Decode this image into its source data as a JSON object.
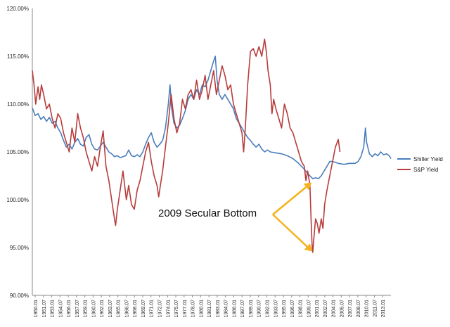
{
  "chart_data": {
    "type": "line",
    "title": "",
    "xlabel": "",
    "ylabel": "",
    "ylim": [
      90,
      120
    ],
    "yticks": [
      "90.00%",
      "95.00%",
      "100.00%",
      "105.00%",
      "110.00%",
      "115.00%",
      "120.00%"
    ],
    "grid": "none",
    "legend_position": "right",
    "x_tick_labels": [
      "1950.01",
      "1951.07",
      "1953.01",
      "1954.07",
      "1956.01",
      "1957.07",
      "1959.01",
      "1960.07",
      "1962.01",
      "1963.07",
      "1965.01",
      "1966.07",
      "1968.01",
      "1969.07",
      "1971.01",
      "1972.07",
      "1974.01",
      "1975.07",
      "1977.01",
      "1978.07",
      "1980.01",
      "1981.07",
      "1983.01",
      "1984.07",
      "1986.01",
      "1987.07",
      "1989.01",
      "1990.07",
      "1992.01",
      "1993.07",
      "1995.01",
      "1996.07",
      "1998.01",
      "1999.07",
      "2001.01",
      "2002.07",
      "2004.01",
      "2005.07",
      "2007.01",
      "2008.07",
      "2010.01",
      "2011.07",
      "2013.01"
    ],
    "x_range": [
      1950.0,
      2013.3
    ],
    "series": [
      {
        "name": "Shiller Yield",
        "color": "#4a7ebb",
        "points": [
          [
            1950.0,
            109.6
          ],
          [
            1950.5,
            108.8
          ],
          [
            1951.0,
            109.0
          ],
          [
            1951.5,
            108.4
          ],
          [
            1952.0,
            108.7
          ],
          [
            1952.5,
            108.2
          ],
          [
            1953.0,
            108.6
          ],
          [
            1953.5,
            108.0
          ],
          [
            1954.0,
            108.2
          ],
          [
            1954.5,
            107.5
          ],
          [
            1955.0,
            107.0
          ],
          [
            1955.5,
            106.2
          ],
          [
            1956.0,
            105.5
          ],
          [
            1956.5,
            105.8
          ],
          [
            1957.0,
            105.3
          ],
          [
            1957.5,
            106.0
          ],
          [
            1958.0,
            106.4
          ],
          [
            1958.5,
            105.8
          ],
          [
            1959.0,
            105.6
          ],
          [
            1959.5,
            106.5
          ],
          [
            1960.0,
            106.8
          ],
          [
            1960.5,
            105.8
          ],
          [
            1961.0,
            105.3
          ],
          [
            1961.5,
            105.2
          ],
          [
            1962.0,
            105.6
          ],
          [
            1962.5,
            106.0
          ],
          [
            1963.0,
            105.5
          ],
          [
            1963.5,
            105.0
          ],
          [
            1964.0,
            104.8
          ],
          [
            1964.5,
            104.5
          ],
          [
            1965.0,
            104.6
          ],
          [
            1965.5,
            104.4
          ],
          [
            1966.0,
            104.5
          ],
          [
            1966.5,
            104.6
          ],
          [
            1967.0,
            105.2
          ],
          [
            1967.5,
            104.6
          ],
          [
            1968.0,
            104.5
          ],
          [
            1968.5,
            104.7
          ],
          [
            1969.0,
            104.5
          ],
          [
            1969.5,
            105.0
          ],
          [
            1970.0,
            105.8
          ],
          [
            1970.5,
            106.5
          ],
          [
            1971.0,
            107.0
          ],
          [
            1971.5,
            106.0
          ],
          [
            1972.0,
            105.5
          ],
          [
            1972.5,
            105.8
          ],
          [
            1973.0,
            106.2
          ],
          [
            1973.5,
            107.5
          ],
          [
            1974.0,
            110.0
          ],
          [
            1974.3,
            112.0
          ],
          [
            1974.6,
            109.5
          ],
          [
            1975.0,
            108.0
          ],
          [
            1975.5,
            107.5
          ],
          [
            1976.0,
            107.8
          ],
          [
            1976.5,
            108.5
          ],
          [
            1977.0,
            109.3
          ],
          [
            1977.5,
            110.5
          ],
          [
            1978.0,
            111.0
          ],
          [
            1978.5,
            110.5
          ],
          [
            1979.0,
            111.5
          ],
          [
            1979.5,
            111.0
          ],
          [
            1980.0,
            112.0
          ],
          [
            1980.5,
            111.8
          ],
          [
            1981.0,
            112.5
          ],
          [
            1981.5,
            113.5
          ],
          [
            1982.0,
            114.5
          ],
          [
            1982.3,
            115.0
          ],
          [
            1982.6,
            112.5
          ],
          [
            1983.0,
            111.0
          ],
          [
            1983.5,
            110.5
          ],
          [
            1984.0,
            111.0
          ],
          [
            1984.5,
            110.5
          ],
          [
            1985.0,
            110.0
          ],
          [
            1985.5,
            109.5
          ],
          [
            1986.0,
            108.5
          ],
          [
            1986.5,
            108.0
          ],
          [
            1987.0,
            107.5
          ],
          [
            1987.5,
            107.0
          ],
          [
            1988.0,
            106.5
          ],
          [
            1988.5,
            106.2
          ],
          [
            1989.0,
            105.8
          ],
          [
            1989.5,
            105.5
          ],
          [
            1990.0,
            105.8
          ],
          [
            1990.5,
            105.3
          ],
          [
            1991.0,
            105.0
          ],
          [
            1991.5,
            105.2
          ],
          [
            1992.0,
            105.0
          ],
          [
            1993.0,
            104.9
          ],
          [
            1994.0,
            104.8
          ],
          [
            1995.0,
            104.6
          ],
          [
            1996.0,
            104.3
          ],
          [
            1997.0,
            103.8
          ],
          [
            1998.0,
            103.2
          ],
          [
            1998.5,
            102.8
          ],
          [
            1999.0,
            102.5
          ],
          [
            1999.5,
            102.2
          ],
          [
            2000.0,
            102.3
          ],
          [
            2000.5,
            102.2
          ],
          [
            2001.0,
            102.5
          ],
          [
            2001.5,
            103.0
          ],
          [
            2002.0,
            103.5
          ],
          [
            2002.5,
            104.0
          ],
          [
            2003.0,
            104.0
          ],
          [
            2004.0,
            103.8
          ],
          [
            2005.0,
            103.7
          ],
          [
            2006.0,
            103.8
          ],
          [
            2007.0,
            103.8
          ],
          [
            2007.5,
            104.0
          ],
          [
            2008.0,
            104.5
          ],
          [
            2008.5,
            105.5
          ],
          [
            2008.8,
            107.5
          ],
          [
            2009.0,
            106.0
          ],
          [
            2009.5,
            104.8
          ],
          [
            2010.0,
            104.5
          ],
          [
            2010.5,
            104.8
          ],
          [
            2011.0,
            104.6
          ],
          [
            2011.5,
            105.0
          ],
          [
            2012.0,
            104.7
          ],
          [
            2012.5,
            104.8
          ],
          [
            2013.0,
            104.6
          ],
          [
            2013.3,
            104.3
          ]
        ]
      },
      {
        "name": "S&P Yield",
        "color": "#b83c3c",
        "points": [
          [
            1950.0,
            113.5
          ],
          [
            1950.3,
            112.0
          ],
          [
            1950.6,
            110.0
          ],
          [
            1951.0,
            111.8
          ],
          [
            1951.3,
            110.5
          ],
          [
            1951.6,
            112.0
          ],
          [
            1952.0,
            111.0
          ],
          [
            1952.5,
            109.5
          ],
          [
            1953.0,
            110.0
          ],
          [
            1953.5,
            108.5
          ],
          [
            1954.0,
            107.5
          ],
          [
            1954.5,
            109.0
          ],
          [
            1955.0,
            108.5
          ],
          [
            1955.5,
            107.0
          ],
          [
            1956.0,
            106.0
          ],
          [
            1956.5,
            105.0
          ],
          [
            1957.0,
            107.5
          ],
          [
            1957.5,
            106.0
          ],
          [
            1958.0,
            109.0
          ],
          [
            1958.5,
            107.5
          ],
          [
            1959.0,
            106.5
          ],
          [
            1959.5,
            105.0
          ],
          [
            1960.0,
            104.0
          ],
          [
            1960.5,
            103.0
          ],
          [
            1961.0,
            104.5
          ],
          [
            1961.5,
            103.5
          ],
          [
            1962.0,
            105.5
          ],
          [
            1962.5,
            107.2
          ],
          [
            1962.8,
            105.0
          ],
          [
            1963.0,
            103.5
          ],
          [
            1963.5,
            102.0
          ],
          [
            1964.0,
            100.0
          ],
          [
            1964.5,
            98.0
          ],
          [
            1964.7,
            97.3
          ],
          [
            1965.0,
            99.0
          ],
          [
            1965.5,
            101.0
          ],
          [
            1966.0,
            103.0
          ],
          [
            1966.3,
            101.5
          ],
          [
            1966.6,
            100.0
          ],
          [
            1967.0,
            101.5
          ],
          [
            1967.5,
            99.5
          ],
          [
            1968.0,
            99.0
          ],
          [
            1968.5,
            101.0
          ],
          [
            1969.0,
            102.0
          ],
          [
            1969.5,
            103.5
          ],
          [
            1970.0,
            105.0
          ],
          [
            1970.5,
            106.0
          ],
          [
            1971.0,
            104.0
          ],
          [
            1971.5,
            102.5
          ],
          [
            1972.0,
            101.5
          ],
          [
            1972.3,
            100.3
          ],
          [
            1972.6,
            101.5
          ],
          [
            1973.0,
            103.0
          ],
          [
            1973.5,
            105.5
          ],
          [
            1974.0,
            108.0
          ],
          [
            1974.5,
            111.0
          ],
          [
            1975.0,
            108.5
          ],
          [
            1975.5,
            107.0
          ],
          [
            1976.0,
            108.0
          ],
          [
            1976.5,
            110.5
          ],
          [
            1977.0,
            109.5
          ],
          [
            1977.5,
            111.0
          ],
          [
            1978.0,
            111.5
          ],
          [
            1978.5,
            110.5
          ],
          [
            1979.0,
            112.5
          ],
          [
            1979.5,
            110.5
          ],
          [
            1980.0,
            111.5
          ],
          [
            1980.5,
            113.0
          ],
          [
            1981.0,
            110.5
          ],
          [
            1981.5,
            112.0
          ],
          [
            1982.0,
            113.5
          ],
          [
            1982.5,
            111.0
          ],
          [
            1983.0,
            112.5
          ],
          [
            1983.5,
            114.0
          ],
          [
            1984.0,
            113.0
          ],
          [
            1984.5,
            111.5
          ],
          [
            1985.0,
            112.0
          ],
          [
            1985.5,
            110.0
          ],
          [
            1986.0,
            109.0
          ],
          [
            1986.5,
            108.0
          ],
          [
            1987.0,
            107.0
          ],
          [
            1987.3,
            105.0
          ],
          [
            1987.6,
            107.5
          ],
          [
            1988.0,
            112.0
          ],
          [
            1988.5,
            115.5
          ],
          [
            1989.0,
            115.8
          ],
          [
            1989.5,
            115.0
          ],
          [
            1990.0,
            116.0
          ],
          [
            1990.5,
            115.0
          ],
          [
            1991.0,
            116.8
          ],
          [
            1991.3,
            115.5
          ],
          [
            1991.6,
            113.5
          ],
          [
            1992.0,
            112.0
          ],
          [
            1992.3,
            109.0
          ],
          [
            1992.6,
            110.5
          ],
          [
            1993.0,
            109.5
          ],
          [
            1993.5,
            108.5
          ],
          [
            1994.0,
            107.5
          ],
          [
            1994.5,
            110.0
          ],
          [
            1995.0,
            109.0
          ],
          [
            1995.5,
            107.5
          ],
          [
            1996.0,
            107.0
          ],
          [
            1996.5,
            106.0
          ],
          [
            1997.0,
            105.0
          ],
          [
            1997.5,
            104.0
          ],
          [
            1998.0,
            103.5
          ],
          [
            1998.3,
            102.0
          ],
          [
            1998.6,
            103.0
          ],
          [
            1999.0,
            101.5
          ],
          [
            1999.2,
            98.0
          ],
          [
            1999.4,
            95.0
          ],
          [
            1999.5,
            94.5
          ],
          [
            1999.7,
            96.0
          ],
          [
            2000.0,
            98.0
          ],
          [
            2000.3,
            97.5
          ],
          [
            2000.6,
            96.5
          ],
          [
            2001.0,
            98.0
          ],
          [
            2001.3,
            97.0
          ],
          [
            2001.6,
            99.5
          ],
          [
            2002.0,
            101.0
          ],
          [
            2002.5,
            102.5
          ],
          [
            2003.0,
            104.0
          ],
          [
            2003.5,
            105.5
          ],
          [
            2004.0,
            106.3
          ],
          [
            2004.3,
            105.0
          ]
        ]
      }
    ],
    "annotation": {
      "text": "2009 Secular Bottom",
      "arrow_color": "#f5b21b",
      "arrow_targets": [
        [
          1999.3,
          101.8
        ],
        [
          1999.4,
          94.6
        ]
      ]
    }
  }
}
